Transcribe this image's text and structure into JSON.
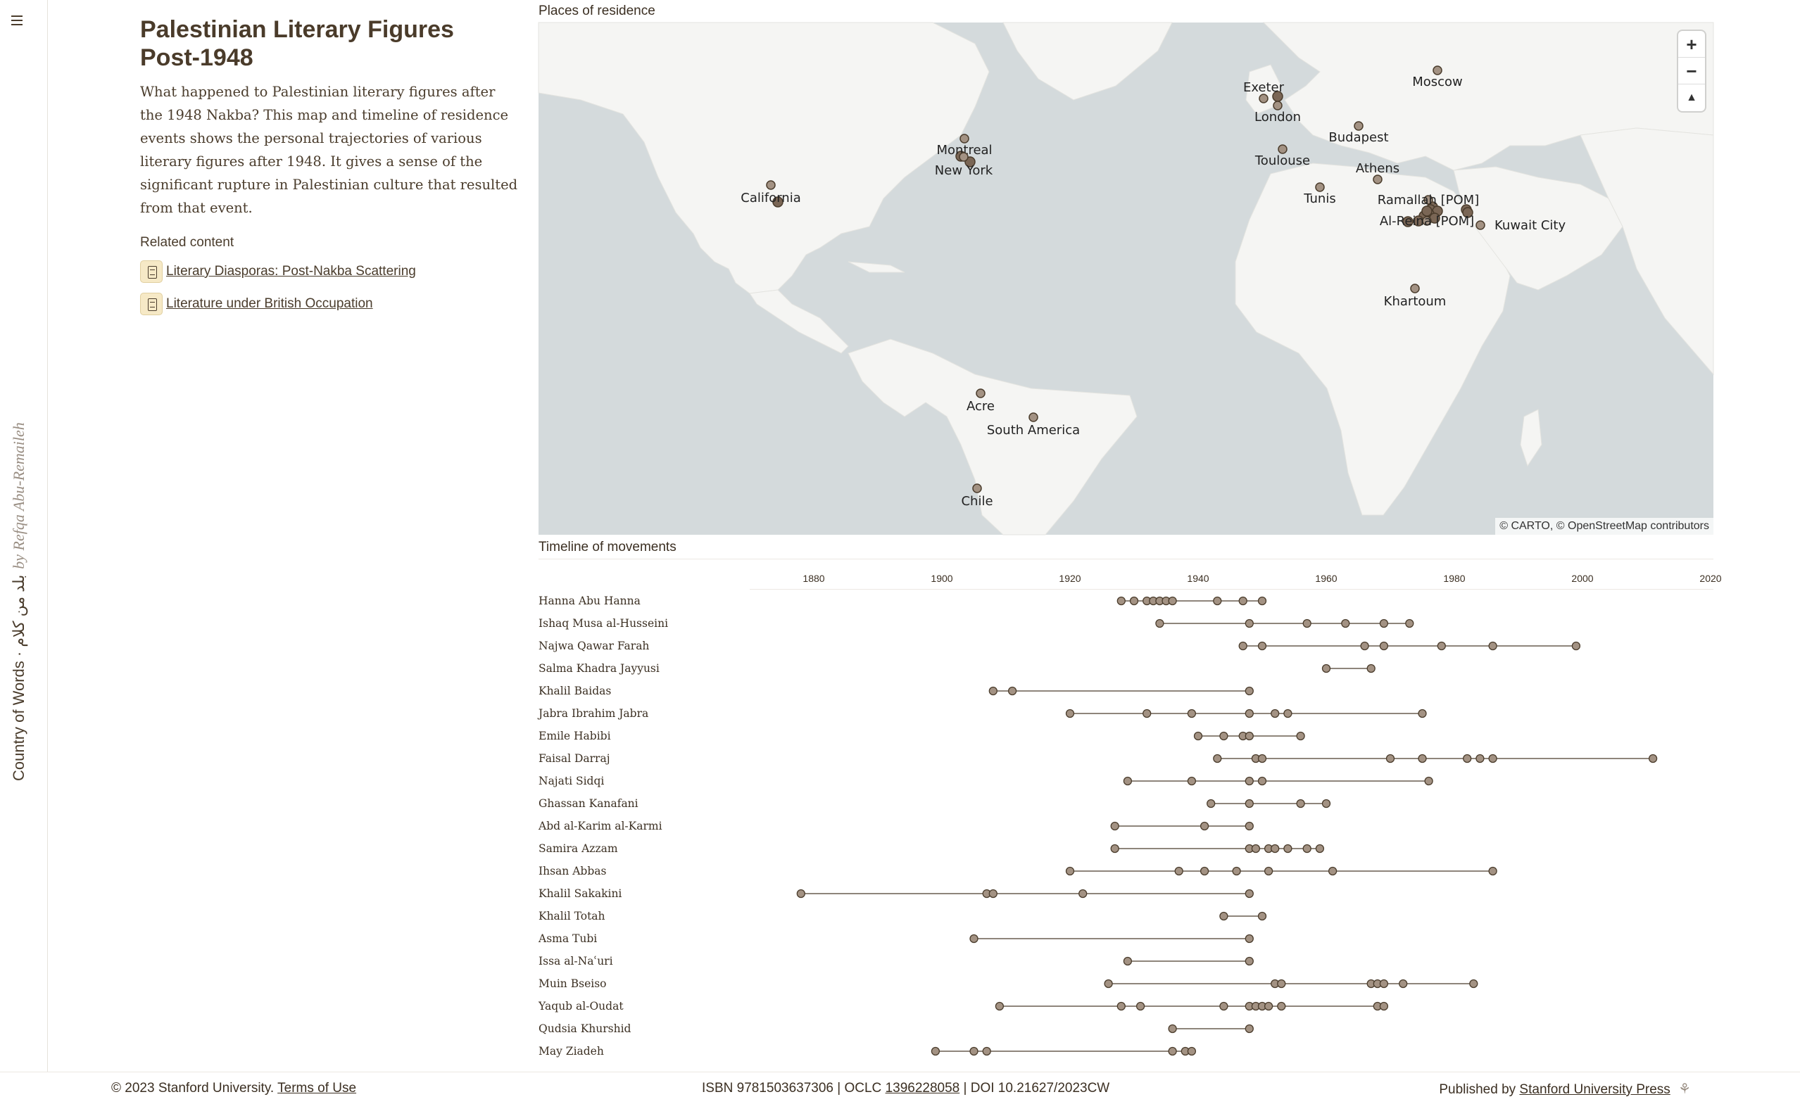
{
  "rail": {
    "brand": "Country of Words · بلد من كلام",
    "byline": "by Refqa Abu-Remaileh"
  },
  "intro": {
    "title": "Palestinian Literary Figures Post-1948",
    "description": "What happened to Palestinian literary figures after the 1948 Nakba? This map and timeline of residence events shows the personal trajectories of various literary figures after 1948. It gives a sense of the significant rupture in Palestinian culture that resulted from that event.",
    "related_label": "Related content",
    "related": [
      {
        "label": "Literary Diasporas: Post-Nakba Scattering",
        "icon": "document-icon"
      },
      {
        "label": "Literature under British Occupation",
        "icon": "document-icon"
      }
    ]
  },
  "map": {
    "label": "Places of residence",
    "zoom_in": "+",
    "zoom_out": "−",
    "reset": "▲",
    "attribution": "© CARTO, © OpenStreetMap contributors",
    "places": [
      "Exeter",
      "Moscow",
      "London",
      "Budapest",
      "Montreal",
      "Toulouse",
      "Athens",
      "New York",
      "California",
      "Tunis",
      "Ramallah [POM]",
      "Al-Reina [POM]",
      "Kuwait City",
      "Khartoum",
      "Acre",
      "South America",
      "Chile"
    ]
  },
  "timeline": {
    "label": "Timeline of movements",
    "year_ticks": [
      "1880",
      "1900",
      "1920",
      "1940",
      "1960",
      "1980",
      "2000",
      "2020"
    ],
    "year_range": [
      1870,
      2020
    ],
    "people": [
      {
        "name": "Hanna Abu Hanna",
        "years": [
          1928,
          1930,
          1932,
          1933,
          1934,
          1935,
          1936,
          1943,
          1947,
          1950
        ]
      },
      {
        "name": "Ishaq Musa al-Husseini",
        "years": [
          1934,
          1948,
          1957,
          1963,
          1969,
          1973
        ]
      },
      {
        "name": "Najwa Qawar Farah",
        "years": [
          1947,
          1950,
          1966,
          1969,
          1978,
          1986,
          1999
        ]
      },
      {
        "name": "Salma Khadra Jayyusi",
        "years": [
          1960,
          1967
        ]
      },
      {
        "name": "Khalil Baidas",
        "years": [
          1908,
          1911,
          1948
        ]
      },
      {
        "name": "Jabra Ibrahim Jabra",
        "years": [
          1920,
          1932,
          1939,
          1948,
          1952,
          1954,
          1975
        ]
      },
      {
        "name": "Emile Habibi",
        "years": [
          1940,
          1944,
          1947,
          1948,
          1956
        ]
      },
      {
        "name": "Faisal Darraj",
        "years": [
          1943,
          1949,
          1950,
          1970,
          1975,
          1982,
          1984,
          1986,
          2011
        ]
      },
      {
        "name": "Najati Sidqi",
        "years": [
          1929,
          1939,
          1948,
          1950,
          1976
        ]
      },
      {
        "name": "Ghassan Kanafani",
        "years": [
          1942,
          1948,
          1956,
          1960
        ]
      },
      {
        "name": "Abd al-Karim al-Karmi",
        "years": [
          1927,
          1941,
          1948
        ]
      },
      {
        "name": "Samira Azzam",
        "years": [
          1927,
          1948,
          1949,
          1951,
          1952,
          1954,
          1957,
          1959
        ]
      },
      {
        "name": "Ihsan Abbas",
        "years": [
          1920,
          1937,
          1941,
          1946,
          1951,
          1961,
          1986
        ]
      },
      {
        "name": "Khalil Sakakini",
        "years": [
          1878,
          1907,
          1908,
          1922,
          1948
        ]
      },
      {
        "name": "Khalil Totah",
        "years": [
          1944,
          1950
        ]
      },
      {
        "name": "Asma Tubi",
        "years": [
          1905,
          1948
        ]
      },
      {
        "name": "Issa al-Naʿuri",
        "years": [
          1929,
          1948
        ]
      },
      {
        "name": "Muin Bseiso",
        "years": [
          1926,
          1952,
          1953,
          1967,
          1968,
          1969,
          1972,
          1983
        ]
      },
      {
        "name": "Yaqub al-Oudat",
        "years": [
          1909,
          1928,
          1931,
          1944,
          1948,
          1949,
          1950,
          1951,
          1953,
          1968,
          1969
        ]
      },
      {
        "name": "Qudsia Khurshid",
        "years": [
          1936,
          1948
        ]
      },
      {
        "name": "May Ziadeh",
        "years": [
          1899,
          1905,
          1907,
          1936,
          1938,
          1939
        ]
      }
    ]
  },
  "footer": {
    "copyright": "© 2023 Stanford University.",
    "terms": "Terms of Use",
    "isbn": "ISBN 9781503637306 | OCLC",
    "oclc": "1396228058",
    "doi": "| DOI 10.21627/2023CW",
    "published_by": "Published by",
    "press": "Stanford University Press",
    "press_icon": "tree-icon"
  },
  "colors": {
    "marker_fill": "#a39283",
    "marker_stroke": "#4a3c2c",
    "land": "#f5f5f3",
    "water": "#d4dadc",
    "text": "#3b2f22"
  }
}
